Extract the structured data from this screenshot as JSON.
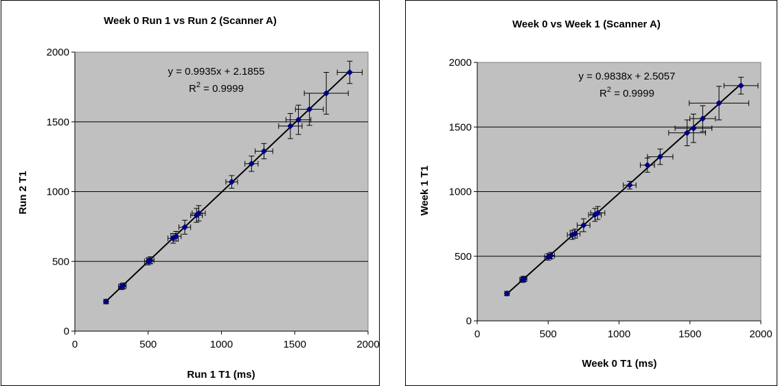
{
  "chart_data": [
    {
      "type": "scatter",
      "title": "Week 0 Run 1 vs Run 2 (Scanner A)",
      "xlabel": "Run 1 T1 (ms)",
      "ylabel": "Run 2 T1",
      "xlim": [
        0,
        2000
      ],
      "ylim": [
        0,
        2000
      ],
      "xticks": [
        "0",
        "500",
        "1000",
        "1500",
        "2000"
      ],
      "yticks": [
        "0",
        "500",
        "1000",
        "1500",
        "2000"
      ],
      "grid": true,
      "plot_bg": "#c0c0c0",
      "marker_color": "#000080",
      "trend_equation": "y = 0.9935x + 2.1855",
      "r2_prefix": "R",
      "r2_sup": "2",
      "r2_value": " = 0.9999",
      "trendline": {
        "slope": 0.9935,
        "intercept": 2.1855
      },
      "points": [
        {
          "x": 213,
          "y": 212,
          "xerr": 15,
          "yerr": 15
        },
        {
          "x": 318,
          "y": 318,
          "xerr": 20,
          "yerr": 20
        },
        {
          "x": 330,
          "y": 325,
          "xerr": 20,
          "yerr": 20
        },
        {
          "x": 500,
          "y": 500,
          "xerr": 25,
          "yerr": 25
        },
        {
          "x": 515,
          "y": 508,
          "xerr": 25,
          "yerr": 25
        },
        {
          "x": 670,
          "y": 665,
          "xerr": 35,
          "yerr": 35
        },
        {
          "x": 690,
          "y": 680,
          "xerr": 35,
          "yerr": 35
        },
        {
          "x": 750,
          "y": 745,
          "xerr": 40,
          "yerr": 50
        },
        {
          "x": 830,
          "y": 830,
          "xerr": 40,
          "yerr": 50
        },
        {
          "x": 845,
          "y": 845,
          "xerr": 45,
          "yerr": 55
        },
        {
          "x": 1070,
          "y": 1070,
          "xerr": 40,
          "yerr": 45
        },
        {
          "x": 1205,
          "y": 1200,
          "xerr": 45,
          "yerr": 55
        },
        {
          "x": 1290,
          "y": 1290,
          "xerr": 60,
          "yerr": 55
        },
        {
          "x": 1470,
          "y": 1470,
          "xerr": 80,
          "yerr": 90
        },
        {
          "x": 1525,
          "y": 1515,
          "xerr": 85,
          "yerr": 105
        },
        {
          "x": 1600,
          "y": 1590,
          "xerr": 95,
          "yerr": 115
        },
        {
          "x": 1715,
          "y": 1705,
          "xerr": 150,
          "yerr": 150
        },
        {
          "x": 1875,
          "y": 1855,
          "xerr": 85,
          "yerr": 80
        }
      ]
    },
    {
      "type": "scatter",
      "title": "Week 0 vs Week 1 (Scanner A)",
      "xlabel": "Week 0 T1 (ms)",
      "ylabel": "Week 1 T1",
      "xlim": [
        0,
        2000
      ],
      "ylim": [
        0,
        2000
      ],
      "xticks": [
        "0",
        "500",
        "1000",
        "1500",
        "2000"
      ],
      "yticks": [
        "0",
        "500",
        "1000",
        "1500",
        "2000"
      ],
      "grid": true,
      "plot_bg": "#c0c0c0",
      "marker_color": "#000080",
      "trend_equation": "y = 0.9838x + 2.5057",
      "r2_prefix": "R",
      "r2_sup": "2",
      "r2_value": " = 0.9999",
      "trendline": {
        "slope": 0.9838,
        "intercept": 2.5057
      },
      "points": [
        {
          "x": 210,
          "y": 212,
          "xerr": 15,
          "yerr": 15
        },
        {
          "x": 320,
          "y": 318,
          "xerr": 20,
          "yerr": 20
        },
        {
          "x": 330,
          "y": 325,
          "xerr": 20,
          "yerr": 20
        },
        {
          "x": 500,
          "y": 495,
          "xerr": 25,
          "yerr": 25
        },
        {
          "x": 520,
          "y": 505,
          "xerr": 25,
          "yerr": 25
        },
        {
          "x": 670,
          "y": 665,
          "xerr": 35,
          "yerr": 35
        },
        {
          "x": 690,
          "y": 675,
          "xerr": 35,
          "yerr": 35
        },
        {
          "x": 750,
          "y": 740,
          "xerr": 45,
          "yerr": 50
        },
        {
          "x": 830,
          "y": 820,
          "xerr": 45,
          "yerr": 50
        },
        {
          "x": 850,
          "y": 835,
          "xerr": 50,
          "yerr": 50
        },
        {
          "x": 1075,
          "y": 1050,
          "xerr": 45,
          "yerr": 30
        },
        {
          "x": 1200,
          "y": 1205,
          "xerr": 50,
          "yerr": 55
        },
        {
          "x": 1290,
          "y": 1270,
          "xerr": 90,
          "yerr": 60
        },
        {
          "x": 1480,
          "y": 1455,
          "xerr": 130,
          "yerr": 100
        },
        {
          "x": 1525,
          "y": 1490,
          "xerr": 130,
          "yerr": 110
        },
        {
          "x": 1590,
          "y": 1565,
          "xerr": 90,
          "yerr": 100
        },
        {
          "x": 1705,
          "y": 1685,
          "xerr": 210,
          "yerr": 130
        },
        {
          "x": 1860,
          "y": 1820,
          "xerr": 120,
          "yerr": 65
        }
      ]
    }
  ]
}
